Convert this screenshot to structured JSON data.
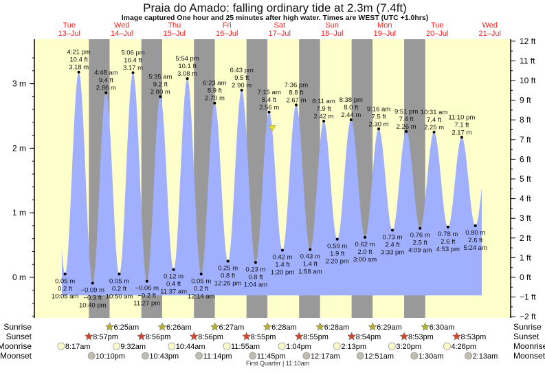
{
  "chart_data": {
    "type": "area",
    "title": "Praia do Amado: falling  ordinary tide at 2.3m (7.4ft)",
    "subtitle": "Image captured One hour and 25 minutes after high water. Times are WEST (UTC +1.0hrs)",
    "days": [
      {
        "dow": "Tue",
        "date": "13–Jul"
      },
      {
        "dow": "Wed",
        "date": "14–Jul"
      },
      {
        "dow": "Thu",
        "date": "15–Jul"
      },
      {
        "dow": "Fri",
        "date": "16–Jul"
      },
      {
        "dow": "Sat",
        "date": "17–Jul"
      },
      {
        "dow": "Sun",
        "date": "18–Jul"
      },
      {
        "dow": "Mon",
        "date": "19–Jul"
      },
      {
        "dow": "Tue",
        "date": "20–Jul"
      },
      {
        "dow": "Wed",
        "date": "21–Jul"
      }
    ],
    "y_left": {
      "unit": "m",
      "ticks": [
        "0 m",
        "1 m",
        "2 m",
        "3 m"
      ],
      "range": [
        -0.6096,
        3.6576
      ]
    },
    "y_right": {
      "unit": "ft",
      "ticks": [
        "−2 ft",
        "−1 ft",
        "0 ft",
        "1 ft",
        "2 ft",
        "3 ft",
        "4 ft",
        "5 ft",
        "6 ft",
        "7 ft",
        "8 ft",
        "9 ft",
        "10 ft",
        "11 ft",
        "12 ft"
      ],
      "range": [
        -2,
        12
      ]
    },
    "extrema": [
      {
        "day": 0,
        "time": "10:05 am",
        "h": 10.08,
        "m": "0.05 m",
        "ft": "0.2 ft",
        "v": 0.05,
        "type": "low"
      },
      {
        "day": 0,
        "time": "4:21 pm",
        "h": 16.35,
        "m": "3.18 m",
        "ft": "10.4 ft",
        "v": 3.18,
        "type": "high"
      },
      {
        "day": 0,
        "time": "10:40 pm",
        "h": 22.67,
        "m": "−0.09 m",
        "ft": "−0.3 ft",
        "v": -0.09,
        "type": "low"
      },
      {
        "day": 1,
        "time": "4:48 am",
        "h": 4.8,
        "m": "2.86 m",
        "ft": "9.4 ft",
        "v": 2.86,
        "type": "high"
      },
      {
        "day": 1,
        "time": "10:50 am",
        "h": 10.83,
        "m": "0.05 m",
        "ft": "0.2 ft",
        "v": 0.05,
        "type": "low"
      },
      {
        "day": 1,
        "time": "5:06 pm",
        "h": 17.1,
        "m": "3.17 m",
        "ft": "10.4 ft",
        "v": 3.17,
        "type": "high"
      },
      {
        "day": 1,
        "time": "11:27 pm",
        "h": 23.45,
        "m": "−0.06 m",
        "ft": "−0.2 ft",
        "v": -0.06,
        "type": "low"
      },
      {
        "day": 2,
        "time": "5:35 am",
        "h": 5.58,
        "m": "2.80 m",
        "ft": "9.2 ft",
        "v": 2.8,
        "type": "high"
      },
      {
        "day": 2,
        "time": "11:37 am",
        "h": 11.62,
        "m": "0.12 m",
        "ft": "0.4 ft",
        "v": 0.12,
        "type": "low"
      },
      {
        "day": 2,
        "time": "5:54 pm",
        "h": 17.9,
        "m": "3.08 m",
        "ft": "10.1 ft",
        "v": 3.08,
        "type": "high"
      },
      {
        "day": 3,
        "time": "12:14 am",
        "h": 0.23,
        "m": "0.05 m",
        "ft": "0.2 ft",
        "v": 0.05,
        "type": "low"
      },
      {
        "day": 3,
        "time": "6:23 am",
        "h": 6.38,
        "m": "2.70 m",
        "ft": "8.9 ft",
        "v": 2.7,
        "type": "high"
      },
      {
        "day": 3,
        "time": "12:26 pm",
        "h": 12.43,
        "m": "0.25 m",
        "ft": "0.8 ft",
        "v": 0.25,
        "type": "low"
      },
      {
        "day": 3,
        "time": "6:43 pm",
        "h": 18.72,
        "m": "2.90 m",
        "ft": "9.5 ft",
        "v": 2.9,
        "type": "high"
      },
      {
        "day": 4,
        "time": "1:04 am",
        "h": 1.07,
        "m": "0.23 m",
        "ft": "0.8 ft",
        "v": 0.23,
        "type": "low"
      },
      {
        "day": 4,
        "time": "7:15 am",
        "h": 7.25,
        "m": "2.56 m",
        "ft": "8.4 ft",
        "v": 2.56,
        "type": "high"
      },
      {
        "day": 4,
        "time": "1:20 pm",
        "h": 13.33,
        "m": "0.42 m",
        "ft": "1.4 ft",
        "v": 0.42,
        "type": "low"
      },
      {
        "day": 4,
        "time": "7:36 pm",
        "h": 19.6,
        "m": "2.67 m",
        "ft": "8.8 ft",
        "v": 2.67,
        "type": "high"
      },
      {
        "day": 5,
        "time": "1:58 am",
        "h": 1.97,
        "m": "0.43 m",
        "ft": "1.4 ft",
        "v": 0.43,
        "type": "low"
      },
      {
        "day": 5,
        "time": "8:11 am",
        "h": 8.18,
        "m": "2.42 m",
        "ft": "7.9 ft",
        "v": 2.42,
        "type": "high"
      },
      {
        "day": 5,
        "time": "2:20 pm",
        "h": 14.33,
        "m": "0.59 m",
        "ft": "1.9 ft",
        "v": 0.59,
        "type": "low"
      },
      {
        "day": 5,
        "time": "8:38 pm",
        "h": 20.63,
        "m": "2.44 m",
        "ft": "8.0 ft",
        "v": 2.44,
        "type": "high"
      },
      {
        "day": 6,
        "time": "3:00 am",
        "h": 3.0,
        "m": "0.62 m",
        "ft": "2.0 ft",
        "v": 0.62,
        "type": "low"
      },
      {
        "day": 6,
        "time": "9:16 am",
        "h": 9.27,
        "m": "2.30 m",
        "ft": "7.5 ft",
        "v": 2.3,
        "type": "high"
      },
      {
        "day": 6,
        "time": "3:33 pm",
        "h": 15.55,
        "m": "0.73 m",
        "ft": "2.4 ft",
        "v": 0.73,
        "type": "low"
      },
      {
        "day": 6,
        "time": "9:51 pm",
        "h": 21.85,
        "m": "2.26 m",
        "ft": "7.4 ft",
        "v": 2.26,
        "type": "high"
      },
      {
        "day": 7,
        "time": "4:09 am",
        "h": 4.15,
        "m": "0.76 m",
        "ft": "2.5 ft",
        "v": 0.76,
        "type": "low"
      },
      {
        "day": 7,
        "time": "10:31 am",
        "h": 10.52,
        "m": "2.25 m",
        "ft": "7.4 ft",
        "v": 2.25,
        "type": "high"
      },
      {
        "day": 7,
        "time": "4:53 pm",
        "h": 16.88,
        "m": "0.78 m",
        "ft": "2.6 ft",
        "v": 0.78,
        "type": "low"
      },
      {
        "day": 7,
        "time": "11:10 pm",
        "h": 23.17,
        "m": "2.17 m",
        "ft": "7.1 ft",
        "v": 2.17,
        "type": "high"
      },
      {
        "day": 8,
        "time": "5:24 am",
        "h": 5.4,
        "m": "0.80 m",
        "ft": "2.6 ft",
        "v": 0.8,
        "type": "low"
      }
    ],
    "current": {
      "day": 4,
      "h": 8.67,
      "v": 2.3
    },
    "rows": {
      "labels": {
        "sunrise": "Sunrise",
        "sunset": "Sunset",
        "moonrise": "Moonrise",
        "moonset": "Moonset"
      },
      "sunrise": [
        {
          "day": 1,
          "h": 6.42,
          "t": "6:25am"
        },
        {
          "day": 2,
          "h": 6.43,
          "t": "6:26am"
        },
        {
          "day": 3,
          "h": 6.45,
          "t": "6:27am"
        },
        {
          "day": 4,
          "h": 6.47,
          "t": "6:28am"
        },
        {
          "day": 5,
          "h": 6.47,
          "t": "6:28am"
        },
        {
          "day": 6,
          "h": 6.48,
          "t": "6:29am"
        },
        {
          "day": 7,
          "h": 6.5,
          "t": "6:30am"
        }
      ],
      "sunset": [
        {
          "day": 0,
          "h": 20.95,
          "t": "8:57pm"
        },
        {
          "day": 1,
          "h": 20.93,
          "t": "8:56pm"
        },
        {
          "day": 2,
          "h": 20.93,
          "t": "8:56pm"
        },
        {
          "day": 3,
          "h": 20.92,
          "t": "8:55pm"
        },
        {
          "day": 4,
          "h": 20.92,
          "t": "8:55pm"
        },
        {
          "day": 5,
          "h": 20.9,
          "t": "8:54pm"
        },
        {
          "day": 6,
          "h": 20.88,
          "t": "8:53pm"
        },
        {
          "day": 7,
          "h": 20.88,
          "t": "8:53pm"
        }
      ],
      "moonrise": [
        {
          "day": 0,
          "h": 8.28,
          "t": "8:17am"
        },
        {
          "day": 1,
          "h": 9.53,
          "t": "9:32am"
        },
        {
          "day": 2,
          "h": 10.73,
          "t": "10:44am"
        },
        {
          "day": 3,
          "h": 11.92,
          "t": "11:55am"
        },
        {
          "day": 4,
          "h": 13.07,
          "t": "1:04pm"
        },
        {
          "day": 5,
          "h": 14.22,
          "t": "2:13pm"
        },
        {
          "day": 6,
          "h": 15.33,
          "t": "3:20pm"
        },
        {
          "day": 7,
          "h": 16.43,
          "t": "4:26pm"
        }
      ],
      "moonset": [
        {
          "day": 0,
          "h": 22.17,
          "t": "10:10pm"
        },
        {
          "day": 1,
          "h": 22.72,
          "t": "10:43pm"
        },
        {
          "day": 2,
          "h": 23.23,
          "t": "11:14pm"
        },
        {
          "day": 3,
          "h": 23.75,
          "t": "11:45pm"
        },
        {
          "day": 5,
          "h": 0.28,
          "t": "12:17am"
        },
        {
          "day": 6,
          "h": 0.85,
          "t": "12:51am"
        },
        {
          "day": 7,
          "h": 1.5,
          "t": "1:30am"
        },
        {
          "day": 8,
          "h": 2.22,
          "t": "2:13am"
        }
      ],
      "moon_phase": {
        "day": 4,
        "h": 11.17,
        "t": "First Quarter | 11:10am"
      }
    },
    "colors": {
      "day": "#ffffcc",
      "night": "#999999",
      "water": "#a0b0ff",
      "day_label": "#ff2020",
      "sunrise": "#b8b030",
      "sunset": "#d04830",
      "moonrise": "#ffffcc",
      "moonset": "#c0bcb0",
      "marker": "#e8e020"
    }
  }
}
